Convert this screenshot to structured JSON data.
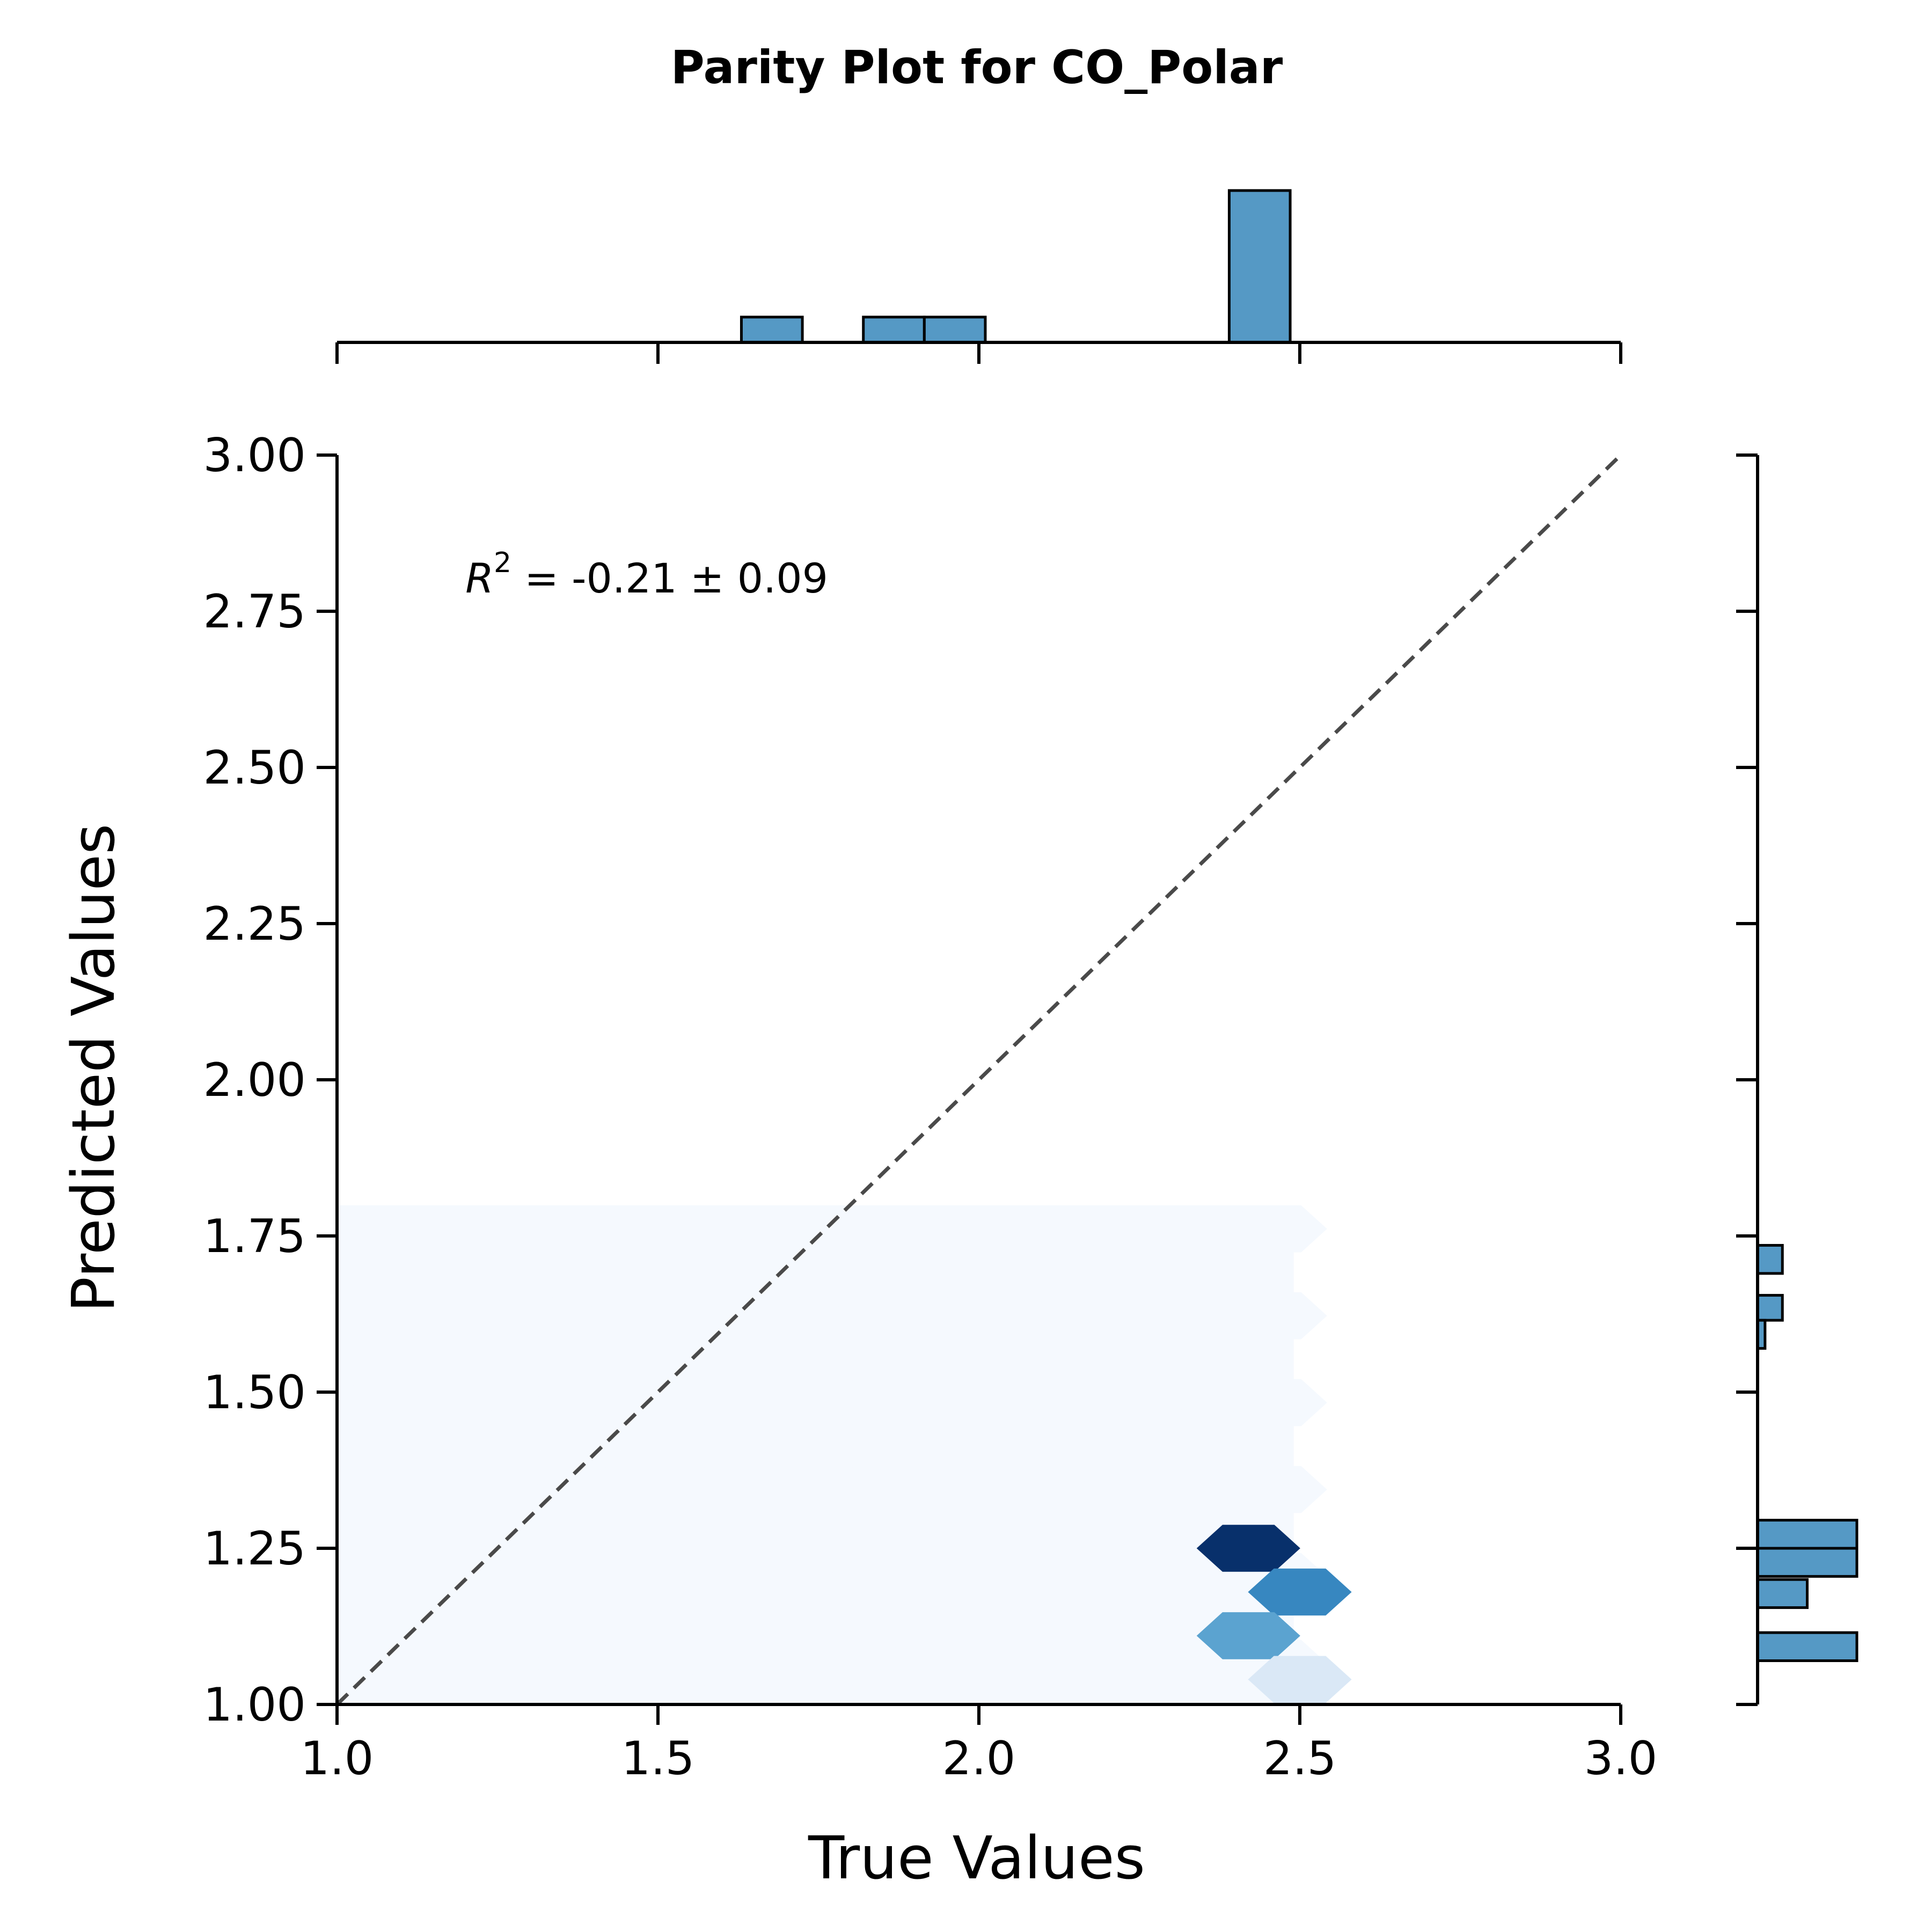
{
  "chart_data": {
    "type": "hexbin",
    "title": "Parity Plot for CO_Polar",
    "xlabel": "True Values",
    "ylabel": "Predicted Values",
    "xlim": [
      1.0,
      3.0
    ],
    "ylim": [
      1.0,
      3.0
    ],
    "x_ticks": [
      "1.0",
      "1.5",
      "2.0",
      "2.5",
      "3.0"
    ],
    "y_ticks": [
      "1.00",
      "1.25",
      "1.50",
      "1.75",
      "2.00",
      "2.25",
      "2.50",
      "2.75",
      "3.00"
    ],
    "annotation": {
      "r_symbol": "R",
      "superscript": "2",
      "text": " = -0.21 ± 0.09",
      "x": 1.2,
      "y": 2.78
    },
    "parity_line": {
      "from": [
        1.0,
        1.0
      ],
      "to": [
        3.0,
        3.0
      ],
      "style": "dashed",
      "color": "#4a4a4a"
    },
    "hexbin": {
      "background_extent": {
        "x": [
          1.0,
          2.57
        ],
        "y": [
          1.0,
          1.8
        ]
      },
      "background_color": "#f5f9fe",
      "cells": [
        {
          "x": 2.42,
          "y": 1.25,
          "color": "#08306b"
        },
        {
          "x": 2.5,
          "y": 1.18,
          "color": "#3787c0"
        },
        {
          "x": 2.42,
          "y": 1.11,
          "color": "#5ba3d0"
        },
        {
          "x": 2.5,
          "y": 1.04,
          "color": "#dae8f6"
        }
      ]
    },
    "marginal_x": {
      "bins": [
        {
          "x0": 1.63,
          "x1": 1.725,
          "count": 1
        },
        {
          "x0": 1.82,
          "x1": 1.915,
          "count": 1
        },
        {
          "x0": 1.915,
          "x1": 2.01,
          "count": 1
        },
        {
          "x0": 2.39,
          "x1": 2.485,
          "count": 6
        }
      ],
      "x_ticks": [
        1.0,
        1.5,
        2.0,
        2.5,
        3.0
      ],
      "color": "#5599c5"
    },
    "marginal_y": {
      "bins": [
        {
          "y0": 1.69,
          "y1": 1.735,
          "count": 1
        },
        {
          "y0": 1.615,
          "y1": 1.655,
          "count": 1
        },
        {
          "y0": 1.57,
          "y1": 1.615,
          "count": 0.3
        },
        {
          "y0": 1.25,
          "y1": 1.295,
          "count": 4
        },
        {
          "y0": 1.205,
          "y1": 1.25,
          "count": 4
        },
        {
          "y0": 1.155,
          "y1": 1.2,
          "count": 2
        },
        {
          "y0": 1.07,
          "y1": 1.115,
          "count": 4
        }
      ],
      "y_ticks": [
        1.0,
        1.25,
        1.5,
        1.75,
        2.0,
        2.25,
        2.5,
        2.75,
        3.0
      ],
      "color": "#5599c5"
    }
  }
}
